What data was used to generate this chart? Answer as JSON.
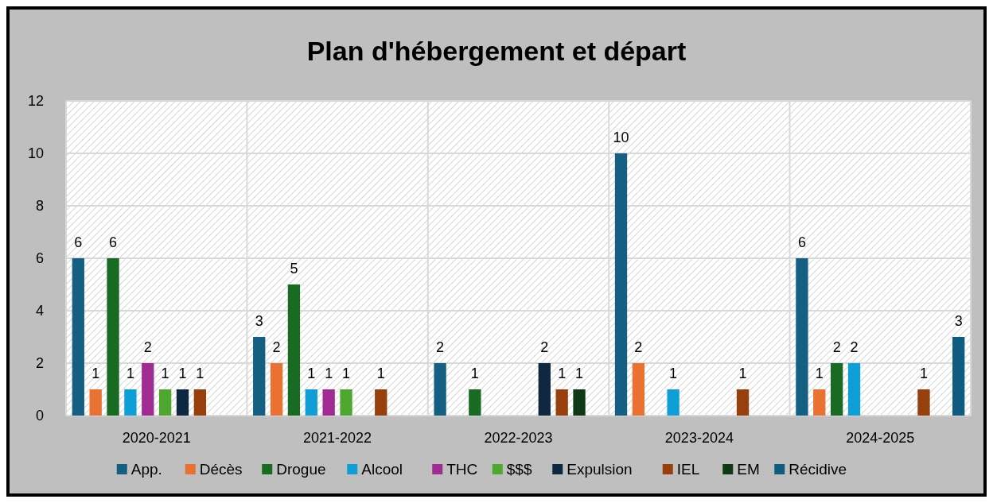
{
  "chart_data": {
    "type": "bar",
    "title": "Plan d'hébergement et départ",
    "categories": [
      "2020-2021",
      "2021-2022",
      "2022-2023",
      "2023-2024",
      "2024-2025"
    ],
    "series": [
      {
        "name": "App.",
        "color": "#156082",
        "values": [
          6,
          3,
          2,
          10,
          6
        ]
      },
      {
        "name": "Décès",
        "color": "#e97132",
        "values": [
          1,
          2,
          null,
          2,
          1
        ]
      },
      {
        "name": "Drogue",
        "color": "#196b24",
        "values": [
          6,
          5,
          1,
          null,
          2
        ]
      },
      {
        "name": "Alcool",
        "color": "#0f9ed5",
        "values": [
          1,
          1,
          null,
          1,
          2
        ]
      },
      {
        "name": "THC",
        "color": "#a02b93",
        "values": [
          2,
          1,
          null,
          null,
          null
        ]
      },
      {
        "name": "$$$",
        "color": "#4ea72e",
        "values": [
          1,
          1,
          null,
          null,
          null
        ]
      },
      {
        "name": "Expulsion",
        "color": "#0e2841",
        "values": [
          1,
          null,
          2,
          null,
          null
        ]
      },
      {
        "name": "IEL",
        "color": "#973f0d",
        "values": [
          1,
          1,
          1,
          1,
          1
        ]
      },
      {
        "name": "EM",
        "color": "#0d3a14",
        "values": [
          null,
          null,
          1,
          null,
          null
        ]
      },
      {
        "name": "Récidive",
        "color": "#0f5c80",
        "values": [
          null,
          null,
          null,
          null,
          3
        ]
      }
    ],
    "ylim": [
      0,
      12
    ],
    "yticks": [
      0,
      2,
      4,
      6,
      8,
      10,
      12
    ],
    "grid": true,
    "legend": "bottom",
    "data_labels": true
  }
}
